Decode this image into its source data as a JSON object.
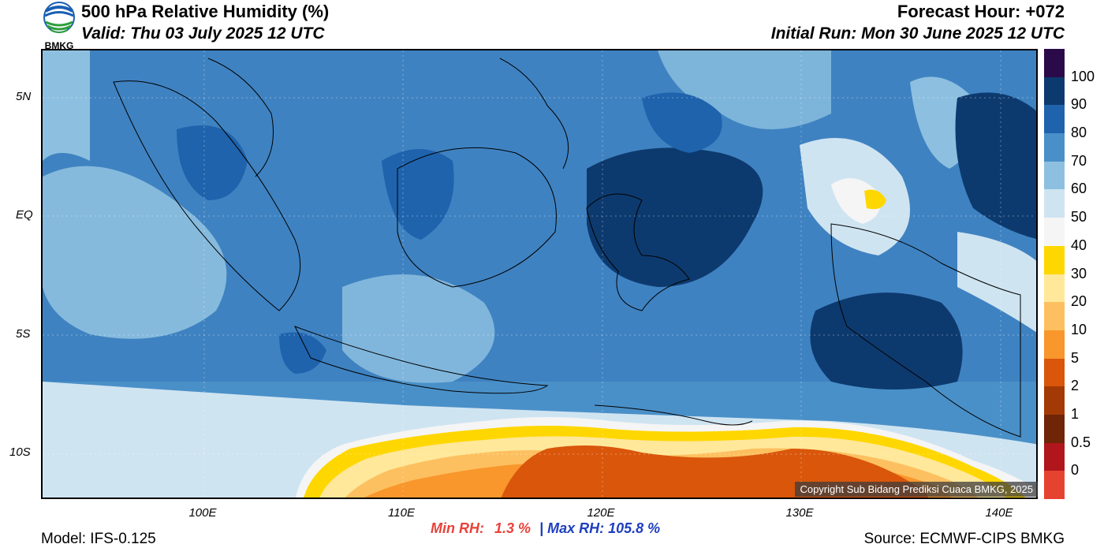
{
  "header": {
    "title": "500 hPa Relative Humidity (%)",
    "valid": "Valid: Thu 03 July 2025 12 UTC",
    "forecast_hour": "Forecast Hour: +072",
    "initial_run": "Initial Run: Mon 30 June 2025 12 UTC",
    "logo_text": "BMKG"
  },
  "map": {
    "lat_labels": [
      "5N",
      "EQ",
      "5S",
      "10S"
    ],
    "lon_labels": [
      "100E",
      "110E",
      "120E",
      "130E",
      "140E"
    ],
    "copyright": "Copyright Sub Bidang Prediksi Cuaca BMKG, 2025"
  },
  "colorbar": {
    "labels": [
      "100",
      "90",
      "80",
      "70",
      "60",
      "50",
      "40",
      "30",
      "20",
      "10",
      "5",
      "2",
      "1",
      "0.5",
      "0"
    ],
    "colors": [
      "#2b0a4a",
      "#0d3a6e",
      "#1f63ad",
      "#4a90c8",
      "#8dc0e0",
      "#cfe4f1",
      "#f5f5f5",
      "#ffd700",
      "#ffe89a",
      "#fdc060",
      "#f9962c",
      "#d9560b",
      "#a33a06",
      "#6e2508",
      "#b0161c",
      "#e64230"
    ]
  },
  "stats": {
    "min_label": "Min RH:",
    "min_value": "1.3 %",
    "separator": "|",
    "max_label": "Max RH:",
    "max_value": "105.8 %"
  },
  "footer": {
    "model": "Model: IFS-0.125",
    "source": "Source: ECMWF-CIPS BMKG"
  }
}
